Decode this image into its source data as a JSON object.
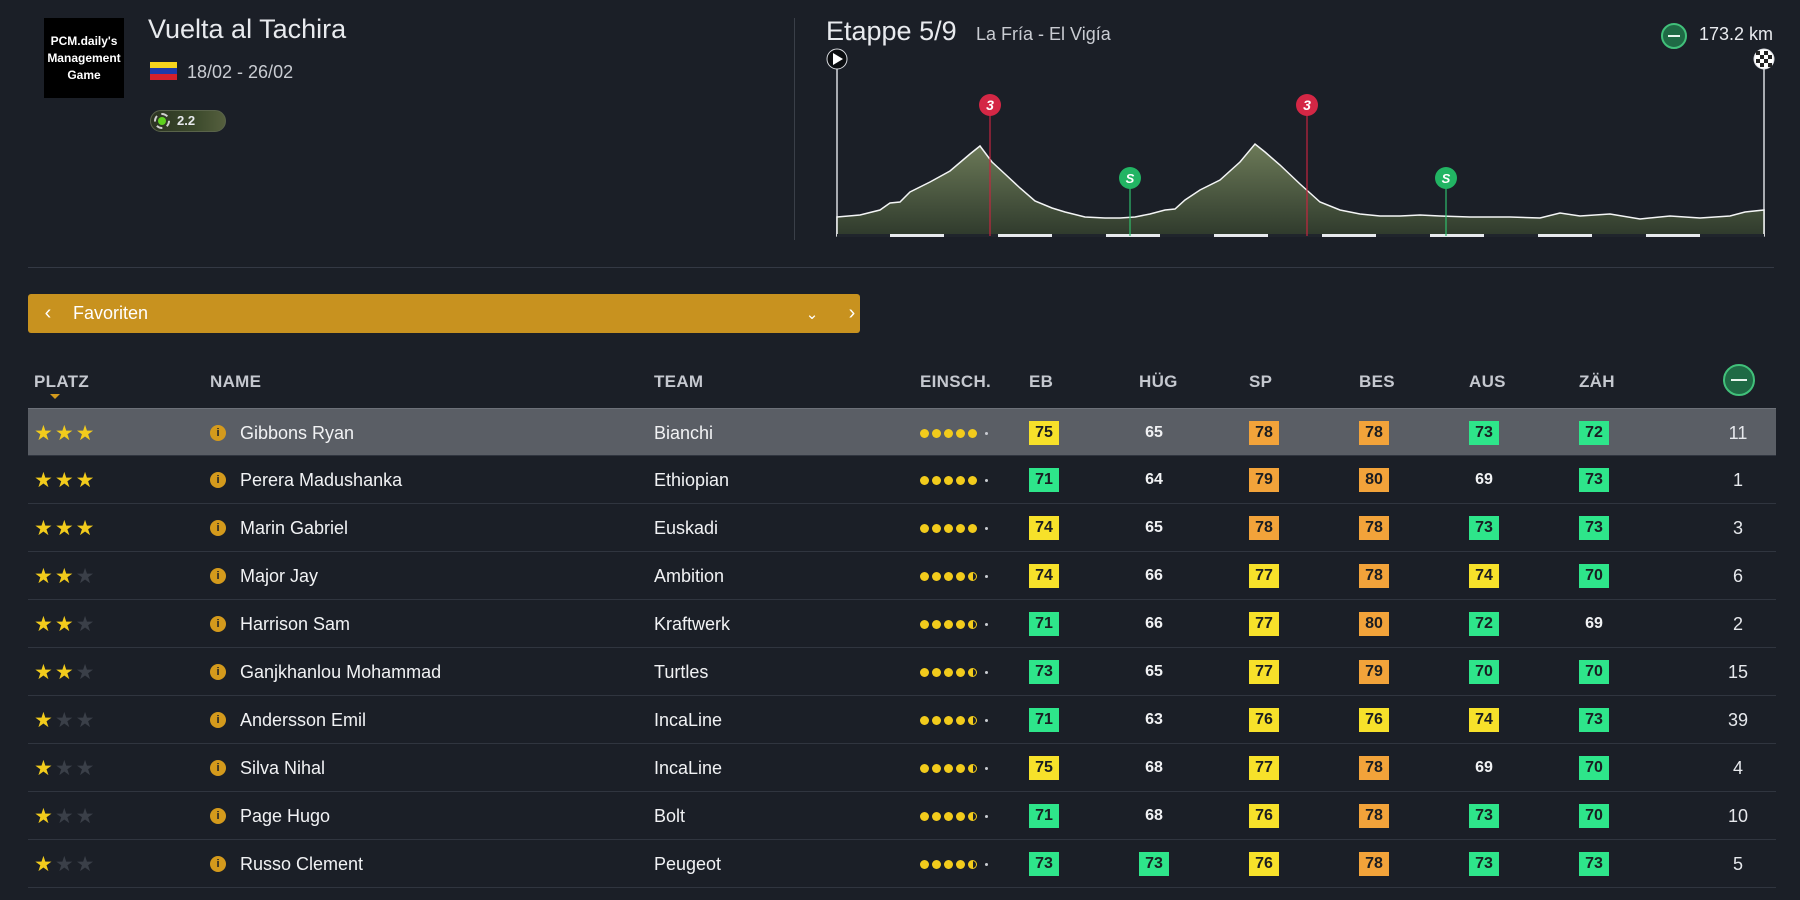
{
  "header": {
    "logo_text": "PCM.daily's Management Game",
    "race_title": "Vuelta al Tachira",
    "dates": "18/02 - 26/02",
    "category": "2.2",
    "stage_label": "Etappe 5/9",
    "stage_route": "La Fría - El Vigía",
    "distance": "173.2 km",
    "flag_colors": [
      "#f6d31c",
      "#1e3aa8",
      "#d5202a"
    ]
  },
  "profile": {
    "markers": [
      {
        "label": "3",
        "type": "climb"
      },
      {
        "label": "S",
        "type": "sprint"
      },
      {
        "label": "3",
        "type": "climb"
      },
      {
        "label": "S",
        "type": "sprint"
      }
    ],
    "start_icon": "play-icon",
    "finish_icon": "checkered-flag-icon"
  },
  "selector": {
    "label": "Favoriten",
    "prev_icon": "chevron-left-icon",
    "next_icon": "chevron-right-icon",
    "dropdown_icon": "chevron-down-icon",
    "accent": "#c8921f"
  },
  "table": {
    "headers": {
      "platz": "PLATZ",
      "name": "NAME",
      "team": "TEAM",
      "einsch": "EINSCH.",
      "eb": "EB",
      "hug": "HÜG",
      "sp": "SP",
      "bes": "BES",
      "aus": "AUS",
      "zah": "ZÄH",
      "distance_icon": "distance-icon"
    },
    "colors": {
      "yellow": "#f7e12a",
      "orange": "#f2a33a",
      "green": "#2ee58a"
    },
    "rows": [
      {
        "stars": 3,
        "name": "Gibbons Ryan",
        "team": "Bianchi",
        "fitness": 5,
        "eb": {
          "v": "75",
          "c": "yellow"
        },
        "hug": {
          "v": "65",
          "c": "plain"
        },
        "sp": {
          "v": "78",
          "c": "orange"
        },
        "bes": {
          "v": "78",
          "c": "orange"
        },
        "aus": {
          "v": "73",
          "c": "green"
        },
        "zah": {
          "v": "72",
          "c": "green"
        },
        "rank": "11"
      },
      {
        "stars": 3,
        "name": "Perera Madushanka",
        "team": "Ethiopian",
        "fitness": 5,
        "eb": {
          "v": "71",
          "c": "green"
        },
        "hug": {
          "v": "64",
          "c": "plain"
        },
        "sp": {
          "v": "79",
          "c": "orange"
        },
        "bes": {
          "v": "80",
          "c": "orange"
        },
        "aus": {
          "v": "69",
          "c": "plain"
        },
        "zah": {
          "v": "73",
          "c": "green"
        },
        "rank": "1"
      },
      {
        "stars": 3,
        "name": "Marin Gabriel",
        "team": "Euskadi",
        "fitness": 5,
        "eb": {
          "v": "74",
          "c": "yellow"
        },
        "hug": {
          "v": "65",
          "c": "plain"
        },
        "sp": {
          "v": "78",
          "c": "orange"
        },
        "bes": {
          "v": "78",
          "c": "orange"
        },
        "aus": {
          "v": "73",
          "c": "green"
        },
        "zah": {
          "v": "73",
          "c": "green"
        },
        "rank": "3"
      },
      {
        "stars": 2,
        "name": "Major Jay",
        "team": "Ambition",
        "fitness": 4.5,
        "eb": {
          "v": "74",
          "c": "yellow"
        },
        "hug": {
          "v": "66",
          "c": "plain"
        },
        "sp": {
          "v": "77",
          "c": "yellow"
        },
        "bes": {
          "v": "78",
          "c": "orange"
        },
        "aus": {
          "v": "74",
          "c": "yellow"
        },
        "zah": {
          "v": "70",
          "c": "green"
        },
        "rank": "6"
      },
      {
        "stars": 2,
        "name": "Harrison Sam",
        "team": "Kraftwerk",
        "fitness": 4.5,
        "eb": {
          "v": "71",
          "c": "green"
        },
        "hug": {
          "v": "66",
          "c": "plain"
        },
        "sp": {
          "v": "77",
          "c": "yellow"
        },
        "bes": {
          "v": "80",
          "c": "orange"
        },
        "aus": {
          "v": "72",
          "c": "green"
        },
        "zah": {
          "v": "69",
          "c": "plain"
        },
        "rank": "2"
      },
      {
        "stars": 2,
        "name": "Ganjkhanlou Mohammad",
        "team": "Turtles",
        "fitness": 4.5,
        "eb": {
          "v": "73",
          "c": "green"
        },
        "hug": {
          "v": "65",
          "c": "plain"
        },
        "sp": {
          "v": "77",
          "c": "yellow"
        },
        "bes": {
          "v": "79",
          "c": "orange"
        },
        "aus": {
          "v": "70",
          "c": "green"
        },
        "zah": {
          "v": "70",
          "c": "green"
        },
        "rank": "15"
      },
      {
        "stars": 1,
        "name": "Andersson Emil",
        "team": "IncaLine",
        "fitness": 4.5,
        "eb": {
          "v": "71",
          "c": "green"
        },
        "hug": {
          "v": "63",
          "c": "plain"
        },
        "sp": {
          "v": "76",
          "c": "yellow"
        },
        "bes": {
          "v": "76",
          "c": "yellow"
        },
        "aus": {
          "v": "74",
          "c": "yellow"
        },
        "zah": {
          "v": "73",
          "c": "green"
        },
        "rank": "39"
      },
      {
        "stars": 1,
        "name": "Silva Nihal",
        "team": "IncaLine",
        "fitness": 4.5,
        "eb": {
          "v": "75",
          "c": "yellow"
        },
        "hug": {
          "v": "68",
          "c": "plain"
        },
        "sp": {
          "v": "77",
          "c": "yellow"
        },
        "bes": {
          "v": "78",
          "c": "orange"
        },
        "aus": {
          "v": "69",
          "c": "plain"
        },
        "zah": {
          "v": "70",
          "c": "green"
        },
        "rank": "4"
      },
      {
        "stars": 1,
        "name": "Page Hugo",
        "team": "Bolt",
        "fitness": 4.5,
        "eb": {
          "v": "71",
          "c": "green"
        },
        "hug": {
          "v": "68",
          "c": "plain"
        },
        "sp": {
          "v": "76",
          "c": "yellow"
        },
        "bes": {
          "v": "78",
          "c": "orange"
        },
        "aus": {
          "v": "73",
          "c": "green"
        },
        "zah": {
          "v": "70",
          "c": "green"
        },
        "rank": "10"
      },
      {
        "stars": 1,
        "name": "Russo Clement",
        "team": "Peugeot",
        "fitness": 4.5,
        "eb": {
          "v": "73",
          "c": "green"
        },
        "hug": {
          "v": "73",
          "c": "green"
        },
        "sp": {
          "v": "76",
          "c": "yellow"
        },
        "bes": {
          "v": "78",
          "c": "orange"
        },
        "aus": {
          "v": "73",
          "c": "green"
        },
        "zah": {
          "v": "73",
          "c": "green"
        },
        "rank": "5"
      }
    ]
  }
}
